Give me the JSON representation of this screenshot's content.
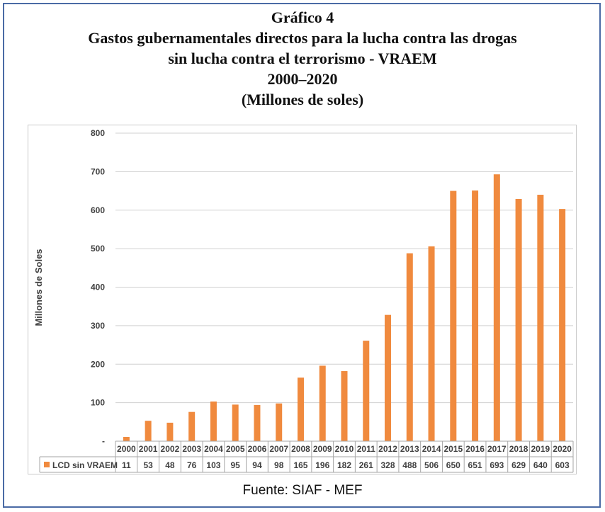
{
  "header": {
    "title_line1": "Gráfico 4",
    "title_line2": "Gastos gubernamentales directos para la lucha contra las drogas",
    "title_line3": "sin lucha contra el terrorismo - VRAEM",
    "title_line4": "2000–2020",
    "title_line5": "(Millones de soles)"
  },
  "footer": {
    "source": "Fuente: SIAF - MEF"
  },
  "chart_data": {
    "type": "bar",
    "ylabel": "Millones de Soles",
    "ylim": [
      0,
      800
    ],
    "yticks": [
      "-",
      "100",
      "200",
      "300",
      "400",
      "500",
      "600",
      "700",
      "800"
    ],
    "grid": true,
    "bar_color": "#f08a3e",
    "categories": [
      "2000",
      "2001",
      "2002",
      "2003",
      "2004",
      "2005",
      "2006",
      "2007",
      "2008",
      "2009",
      "2010",
      "2011",
      "2012",
      "2013",
      "2014",
      "2015",
      "2016",
      "2017",
      "2018",
      "2019",
      "2020"
    ],
    "series": [
      {
        "name": "LCD sin VRAEM",
        "values": [
          11,
          53,
          48,
          76,
          103,
          95,
          94,
          98,
          165,
          196,
          182,
          261,
          328,
          488,
          506,
          650,
          651,
          693,
          629,
          640,
          603
        ]
      }
    ],
    "data_table": true
  }
}
